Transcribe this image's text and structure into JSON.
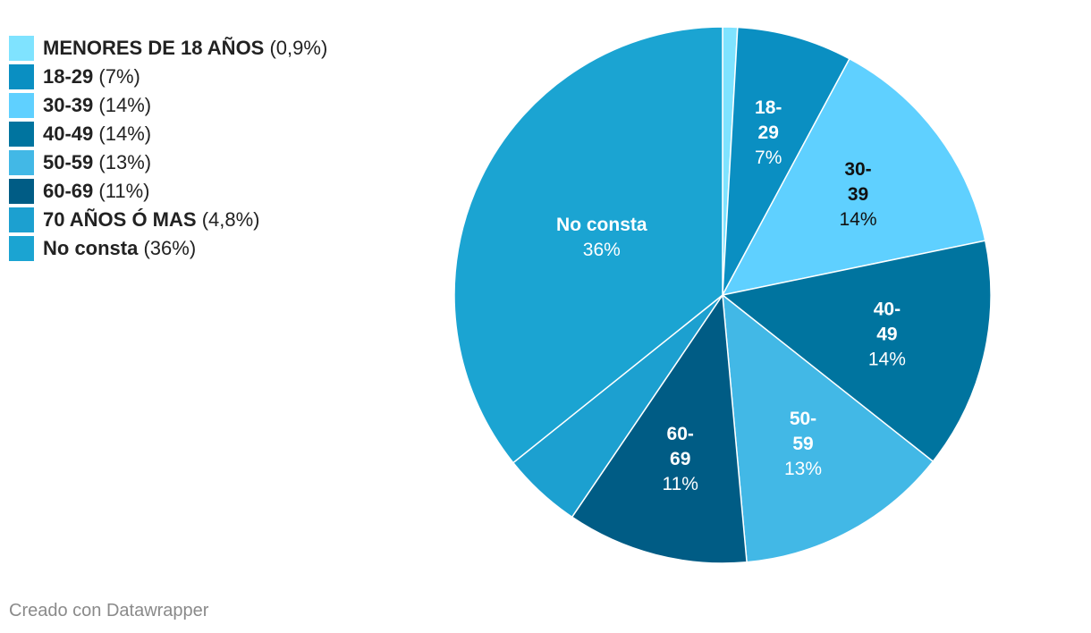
{
  "chart_data": {
    "type": "pie",
    "start_angle_deg": 0,
    "slices": [
      {
        "name": "MENORES DE 18 AÑOS",
        "value": 0.9,
        "pct_label": "0,9%",
        "color": "#7fe3ff",
        "show_label": false,
        "label_color": "#ffffff",
        "label_lines": []
      },
      {
        "name": "18-29",
        "value": 7,
        "pct_label": "7%",
        "color": "#0a8fc2",
        "show_label": true,
        "label_color": "#ffffff",
        "label_lines": [
          "18-",
          "29"
        ]
      },
      {
        "name": "30-39",
        "value": 14,
        "pct_label": "14%",
        "color": "#5fd0ff",
        "show_label": true,
        "label_color": "#111111",
        "label_lines": [
          "30-",
          "39"
        ]
      },
      {
        "name": "40-49",
        "value": 14,
        "pct_label": "14%",
        "color": "#00749f",
        "show_label": true,
        "label_color": "#ffffff",
        "label_lines": [
          "40-",
          "49"
        ]
      },
      {
        "name": "50-59",
        "value": 13,
        "pct_label": "13%",
        "color": "#42b8e6",
        "show_label": true,
        "label_color": "#ffffff",
        "label_lines": [
          "50-",
          "59"
        ]
      },
      {
        "name": "60-69",
        "value": 11,
        "pct_label": "11%",
        "color": "#005c85",
        "show_label": true,
        "label_color": "#ffffff",
        "label_lines": [
          "60-",
          "69"
        ]
      },
      {
        "name": "70 AÑOS Ó MAS",
        "value": 4.8,
        "pct_label": "4,8%",
        "color": "#1ca0d0",
        "show_label": false,
        "label_color": "#ffffff",
        "label_lines": []
      },
      {
        "name": "No consta",
        "value": 36,
        "pct_label": "36%",
        "color": "#1ba4d2",
        "show_label": true,
        "label_color": "#ffffff",
        "label_lines": [
          "No consta"
        ]
      }
    ],
    "legend_position": "top-left"
  },
  "legend": {
    "items": [
      {
        "name": "MENORES DE 18 AÑOS",
        "pct": "(0,9%)",
        "color": "#7fe3ff"
      },
      {
        "name": "18-29",
        "pct": "(7%)",
        "color": "#0a8fc2"
      },
      {
        "name": "30-39",
        "pct": "(14%)",
        "color": "#5fd0ff"
      },
      {
        "name": "40-49",
        "pct": "(14%)",
        "color": "#00749f"
      },
      {
        "name": "50-59",
        "pct": "(13%)",
        "color": "#42b8e6"
      },
      {
        "name": "60-69",
        "pct": "(11%)",
        "color": "#005c85"
      },
      {
        "name": "70 AÑOS Ó MAS",
        "pct": "(4,8%)",
        "color": "#1ca0d0"
      },
      {
        "name": "No consta",
        "pct": "(36%)",
        "color": "#1ba4d2"
      }
    ]
  },
  "footer": {
    "credit": "Creado con Datawrapper"
  }
}
